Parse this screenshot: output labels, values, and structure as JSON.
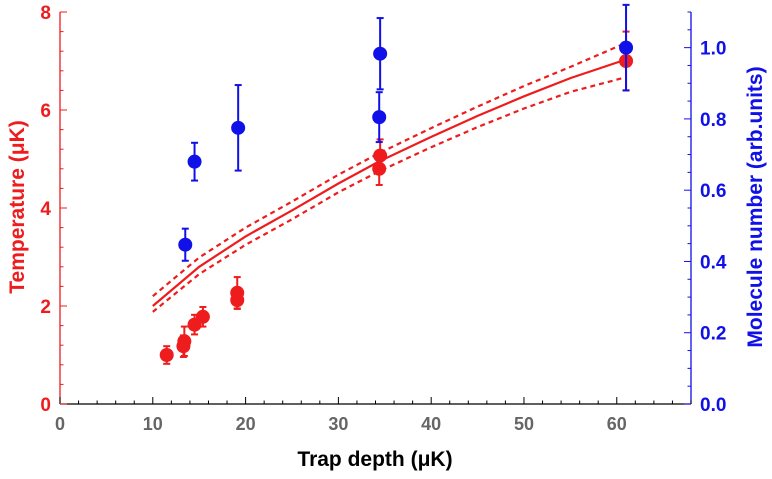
{
  "chart_data": {
    "type": "scatter",
    "title": "",
    "xlabel": "Trap depth (μK)",
    "ylabel_left": "Temperature (μK)",
    "ylabel_right": "Molecule number (arb.units)",
    "xlim": [
      0,
      68
    ],
    "ylim_left": [
      0,
      8
    ],
    "ylim_right": [
      0,
      1.1
    ],
    "x_ticks": [
      0,
      10,
      20,
      30,
      40,
      50,
      60
    ],
    "y_left_ticks": [
      0,
      2,
      4,
      6,
      8
    ],
    "y_right_ticks": [
      0.0,
      0.2,
      0.4,
      0.6,
      0.8,
      1.0
    ],
    "y_right_tick_labels": [
      "0.0",
      "0.2",
      "0.4",
      "0.6",
      "0.8",
      "1.0"
    ],
    "colors": {
      "temperature": "#ee1c1c",
      "molecule": "#1010e8",
      "axis": "#000000",
      "tick_text": "#666666"
    },
    "series": [
      {
        "name": "Temperature",
        "axis": "left",
        "kind": "points",
        "points": [
          {
            "x": 11.5,
            "y": 1.0,
            "err": 0.18
          },
          {
            "x": 13.3,
            "y": 1.18,
            "err": 0.22
          },
          {
            "x": 13.4,
            "y": 1.28,
            "err": 0.3
          },
          {
            "x": 14.5,
            "y": 1.62,
            "err": 0.2
          },
          {
            "x": 15.4,
            "y": 1.78,
            "err": 0.2
          },
          {
            "x": 19.1,
            "y": 2.12,
            "err": 0.18
          },
          {
            "x": 19.1,
            "y": 2.27,
            "err": 0.32
          },
          {
            "x": 34.4,
            "y": 4.8,
            "err": 0.33
          },
          {
            "x": 34.5,
            "y": 5.07,
            "err": 0.33
          },
          {
            "x": 61.0,
            "y": 7.0,
            "err": 0.6
          }
        ]
      },
      {
        "name": "Molecule number",
        "axis": "right",
        "kind": "points",
        "points": [
          {
            "x": 13.5,
            "y": 0.447,
            "err": 0.045
          },
          {
            "x": 14.5,
            "y": 0.68,
            "err": 0.053
          },
          {
            "x": 19.2,
            "y": 0.775,
            "err": 0.12
          },
          {
            "x": 34.4,
            "y": 0.805,
            "err": 0.07
          },
          {
            "x": 34.5,
            "y": 0.983,
            "err": 0.1
          },
          {
            "x": 61.0,
            "y": 1.0,
            "err": 0.12
          }
        ]
      },
      {
        "name": "Temperature fit",
        "axis": "left",
        "kind": "line",
        "style": "solid",
        "x": [
          10,
          15,
          20,
          25,
          30,
          34.4,
          40,
          45,
          50,
          55,
          61
        ],
        "y": [
          2.0,
          2.8,
          3.42,
          3.95,
          4.5,
          4.95,
          5.45,
          5.88,
          6.28,
          6.65,
          7.03
        ]
      },
      {
        "name": "Temperature fit upper bound",
        "axis": "left",
        "kind": "line",
        "style": "dashed",
        "x": [
          10,
          15,
          20,
          25,
          30,
          34.4,
          40,
          45,
          50,
          55,
          61
        ],
        "y": [
          2.2,
          2.99,
          3.6,
          4.13,
          4.68,
          5.12,
          5.63,
          6.07,
          6.49,
          6.88,
          7.37
        ]
      },
      {
        "name": "Temperature fit lower bound",
        "axis": "left",
        "kind": "line",
        "style": "dashed",
        "x": [
          10,
          15,
          20,
          25,
          30,
          34.4,
          40,
          45,
          50,
          55,
          61
        ],
        "y": [
          1.88,
          2.65,
          3.25,
          3.77,
          4.32,
          4.75,
          5.24,
          5.65,
          6.03,
          6.37,
          6.67
        ]
      }
    ]
  }
}
